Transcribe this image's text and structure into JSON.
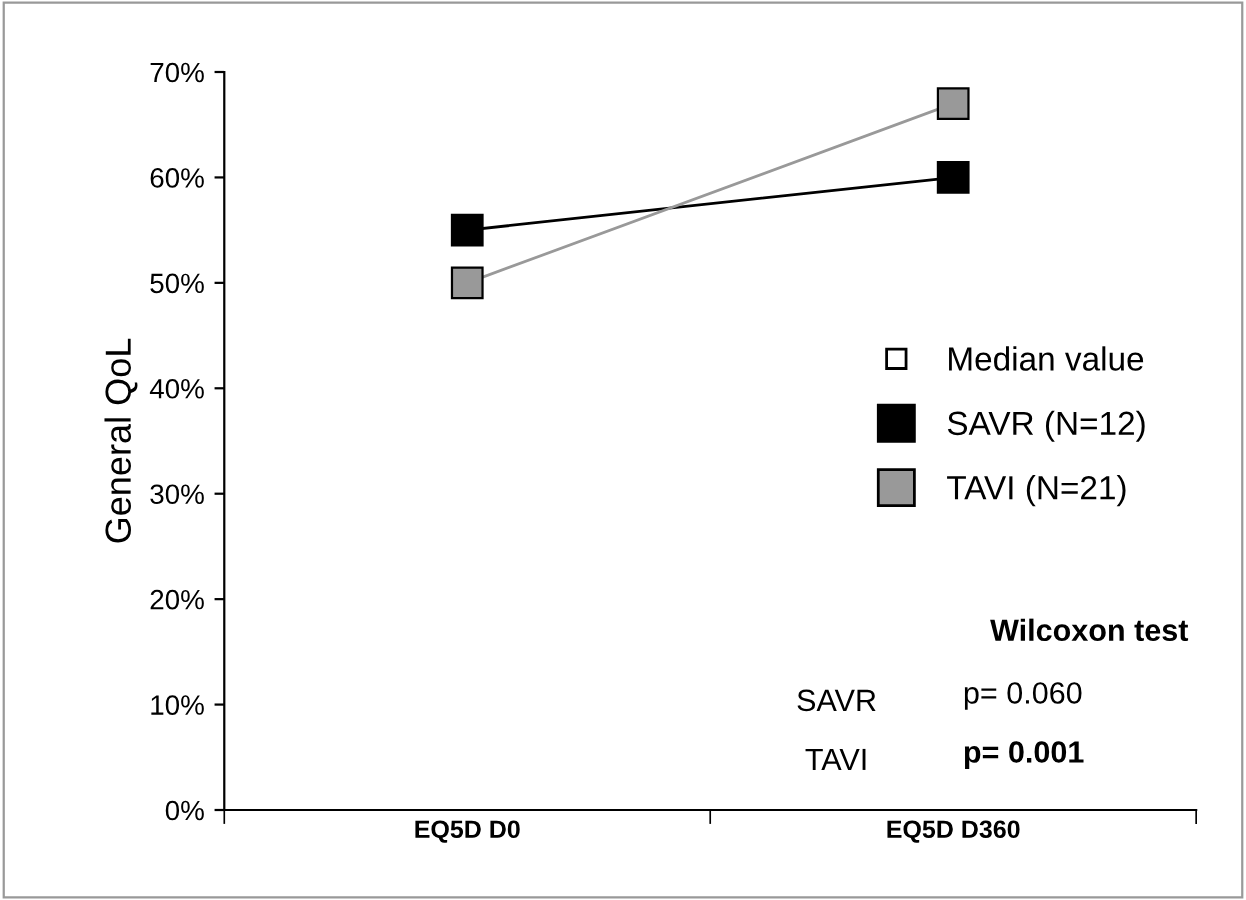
{
  "chart_data": {
    "type": "line",
    "ylabel": "General QoL",
    "legend_title": "Median value",
    "categories": [
      "EQ5D D0",
      "EQ5D D360"
    ],
    "series": [
      {
        "name": "SAVR (N=12)",
        "color": "#000000",
        "values": [
          55,
          60
        ]
      },
      {
        "name": "TAVI (N=21)",
        "color": "#999999",
        "values": [
          50,
          67
        ]
      }
    ],
    "ylim": [
      0,
      70
    ],
    "yticks": [
      {
        "value": 0,
        "label": "0%"
      },
      {
        "value": 10,
        "label": "10%"
      },
      {
        "value": 20,
        "label": "20%"
      },
      {
        "value": 30,
        "label": "30%"
      },
      {
        "value": 40,
        "label": "40%"
      },
      {
        "value": 50,
        "label": "50%"
      },
      {
        "value": 60,
        "label": "60%"
      },
      {
        "value": 70,
        "label": "70%"
      }
    ],
    "marker": "square",
    "line_style": "solid",
    "grid": false,
    "legend": "right",
    "annotations": [
      "Wilcoxon test",
      "SAVR",
      "p= 0.060",
      "TAVI",
      "p= 0.001"
    ]
  }
}
